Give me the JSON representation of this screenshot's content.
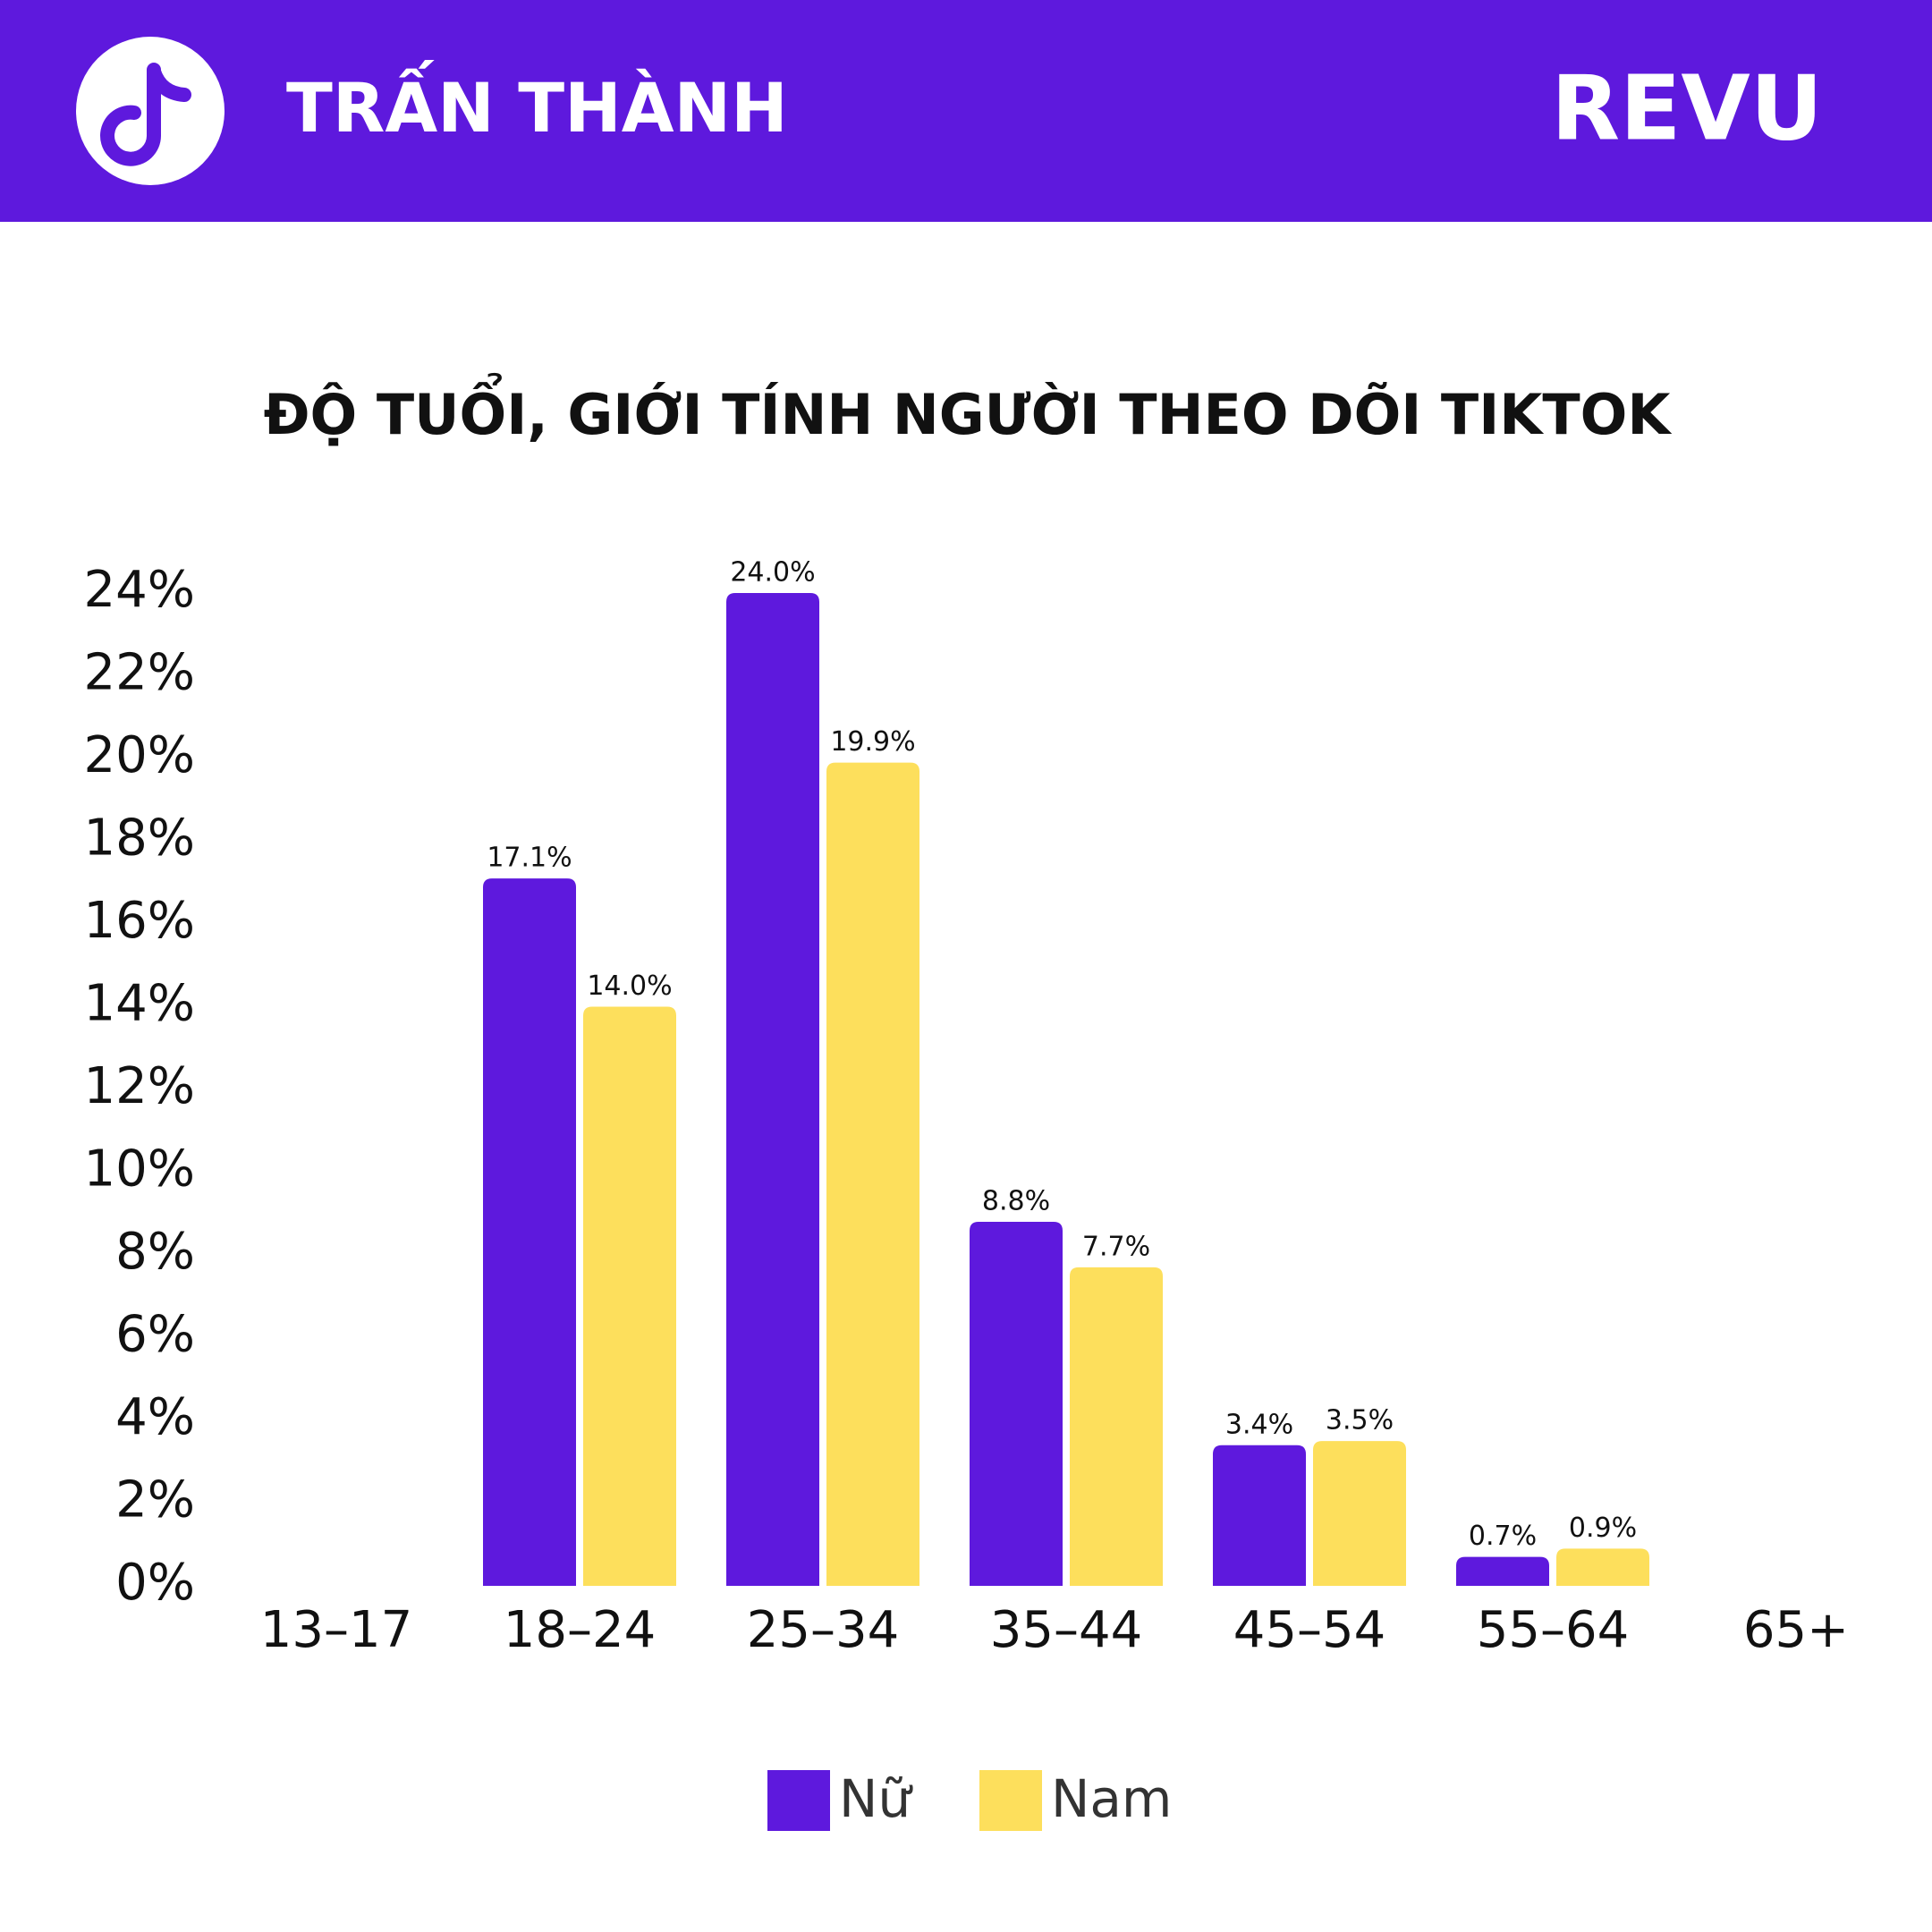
{
  "header": {
    "title": "TRẤN THÀNH",
    "brand": "REVU"
  },
  "chart_data": {
    "type": "bar",
    "title": "ĐỘ TUỔI, GIỚI TÍNH NGƯỜI THEO DÕI TIKTOK",
    "categories": [
      "13–17",
      "18–24",
      "25–34",
      "35–44",
      "45–54",
      "55–64",
      "65+"
    ],
    "series": [
      {
        "name": "Nữ",
        "color": "#5e19dd",
        "values": [
          null,
          17.1,
          24.0,
          8.8,
          3.4,
          0.7,
          null
        ],
        "value_labels": [
          null,
          "17.1%",
          "24.0%",
          "8.8%",
          "3.4%",
          "0.7%",
          null
        ]
      },
      {
        "name": "Nam",
        "color": "#fddf5c",
        "values": [
          null,
          14.0,
          19.9,
          7.7,
          3.5,
          0.9,
          null
        ],
        "value_labels": [
          null,
          "14.0%",
          "19.9%",
          "7.7%",
          "3.5%",
          "0.9%",
          null
        ]
      }
    ],
    "ylim": [
      0,
      24
    ],
    "yticks": [
      {
        "value": 0,
        "label": "0%"
      },
      {
        "value": 2,
        "label": "2%"
      },
      {
        "value": 4,
        "label": "4%"
      },
      {
        "value": 6,
        "label": "6%"
      },
      {
        "value": 8,
        "label": "8%"
      },
      {
        "value": 10,
        "label": "10%"
      },
      {
        "value": 12,
        "label": "12%"
      },
      {
        "value": 14,
        "label": "14%"
      },
      {
        "value": 16,
        "label": "16%"
      },
      {
        "value": 18,
        "label": "18%"
      },
      {
        "value": 20,
        "label": "20%"
      },
      {
        "value": 22,
        "label": "22%"
      },
      {
        "value": 24,
        "label": "24%"
      }
    ],
    "grid": false
  }
}
